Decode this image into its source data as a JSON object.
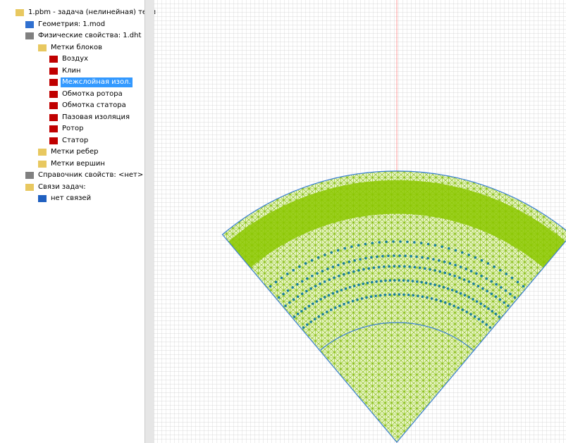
{
  "tree": {
    "items": [
      {
        "label": "1.pbm -  задача (нелинейная) тепл"
      },
      {
        "label": "Геометрия: 1.mod"
      },
      {
        "label": "Физические свойства: 1.dht"
      },
      {
        "label": "Метки блоков"
      },
      {
        "label": "Воздух"
      },
      {
        "label": "Клин"
      },
      {
        "label": "Межслойная изол."
      },
      {
        "label": "Обмотка ротора"
      },
      {
        "label": "Обмотка статора"
      },
      {
        "label": "Пазовая изоляция"
      },
      {
        "label": "Ротор"
      },
      {
        "label": "Статор"
      },
      {
        "label": "Метки ребер"
      },
      {
        "label": "Метки вершин"
      },
      {
        "label": "Справочник свойств: <нет>"
      },
      {
        "label": "Связи задач:"
      },
      {
        "label": "нет связей"
      }
    ]
  }
}
